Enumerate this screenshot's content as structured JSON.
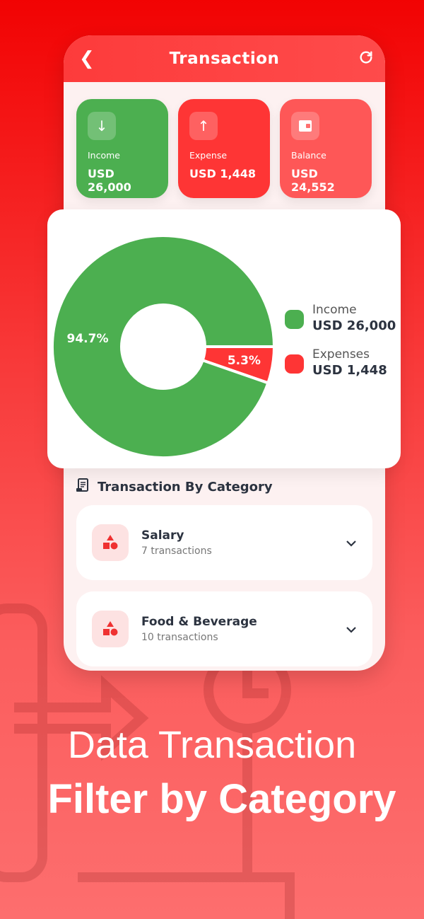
{
  "header": {
    "title": "Transaction",
    "back_icon": "chevron-left-icon",
    "refresh_icon": "refresh-icon"
  },
  "summary": [
    {
      "label": "Income",
      "value": "USD 26,000",
      "icon": "arrow-down-icon",
      "color": "#4caf50"
    },
    {
      "label": "Expense",
      "value": "USD 1,448",
      "icon": "arrow-up-icon",
      "color": "#fe3535"
    },
    {
      "label": "Balance",
      "value": "USD 24,552",
      "icon": "wallet-icon",
      "color": "#fe5757"
    }
  ],
  "chart_data": {
    "type": "pie",
    "donut": true,
    "slices": [
      {
        "name": "Income",
        "value": 94.7,
        "label": "94.7%",
        "color": "#4caf50"
      },
      {
        "name": "Expenses",
        "value": 5.3,
        "label": "5.3%",
        "color": "#fe3535"
      }
    ],
    "legend": "right"
  },
  "legend": [
    {
      "name": "Income",
      "value": "USD 26,000"
    },
    {
      "name": "Expenses",
      "value": "USD 1,448"
    }
  ],
  "categories": {
    "title": "Transaction By Category",
    "items": [
      {
        "name": "Salary",
        "count": "7 transactions"
      },
      {
        "name": "Food & Beverage",
        "count": "10 transactions"
      }
    ]
  },
  "promo": {
    "line1": "Data Transaction",
    "line2": "Filter by Category"
  }
}
